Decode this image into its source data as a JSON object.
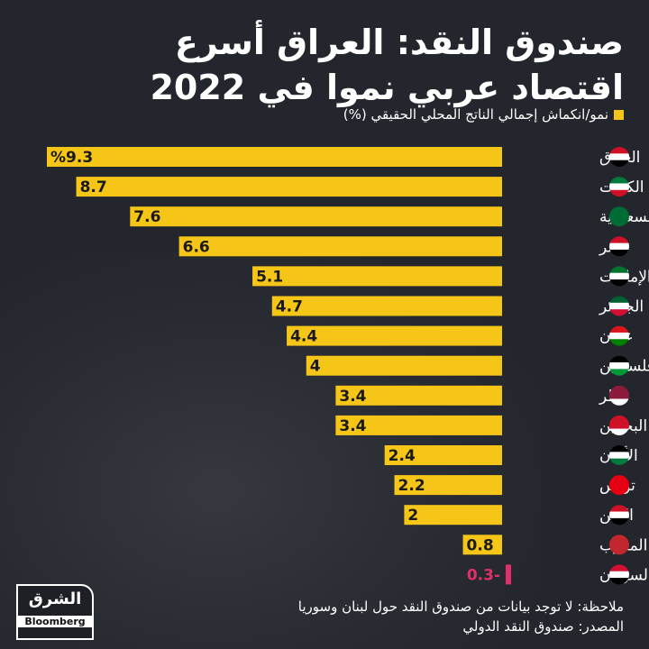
{
  "title_line1": "صندوق النقد: العراق أسرع",
  "title_line2": "اقتصاد عربي نموا في 2022",
  "legend_label": "نمو/انكماش إجمالي الناتج المحلي الحقيقي (%)",
  "note": "ملاحظة: لا توجد بيانات من صندوق النقد حول لبنان وسوريا",
  "source": "المصدر: صندوق النقد الدولي",
  "logo": {
    "arabic": "الشرق",
    "english": "Bloomberg"
  },
  "colors": {
    "positive": "#f5c518",
    "negative": "#e0306a",
    "background": "#23262d"
  },
  "chart_data": {
    "type": "bar",
    "orientation": "horizontal",
    "categories": [
      "العراق",
      "الكويت",
      "السعودية",
      "مصر",
      "الإمارات",
      "الجزائر",
      "عمان",
      "فلسطين",
      "قطر",
      "البحرين",
      "الأردن",
      "تونس",
      "اليمن",
      "المغرب",
      "السودان"
    ],
    "values": [
      9.3,
      8.7,
      7.6,
      6.6,
      5.1,
      4.7,
      4.4,
      4,
      3.4,
      3.4,
      2.4,
      2.2,
      2,
      0.8,
      -0.3
    ],
    "labels": [
      "%9.3",
      "8.7",
      "7.6",
      "6.6",
      "5.1",
      "4.7",
      "4.4",
      "4",
      "3.4",
      "3.4",
      "2.4",
      "2.2",
      "2",
      "0.8",
      "0.3-"
    ],
    "flags": [
      [
        "#ce1126",
        "#ffffff",
        "#000000"
      ],
      [
        "#007a3d",
        "#ffffff",
        "#ce1126"
      ],
      [
        "#006c35",
        "#006c35",
        "#006c35"
      ],
      [
        "#ce1126",
        "#ffffff",
        "#000000"
      ],
      [
        "#00732f",
        "#ffffff",
        "#000000"
      ],
      [
        "#006233",
        "#ffffff",
        "#d21034"
      ],
      [
        "#db161b",
        "#ffffff",
        "#008000"
      ],
      [
        "#000000",
        "#ffffff",
        "#009736"
      ],
      [
        "#8d1b3d",
        "#8d1b3d",
        "#ffffff"
      ],
      [
        "#ce1126",
        "#ce1126",
        "#ffffff"
      ],
      [
        "#000000",
        "#ffffff",
        "#007a3d"
      ],
      [
        "#e70013",
        "#e70013",
        "#e70013"
      ],
      [
        "#ce1126",
        "#ffffff",
        "#000000"
      ],
      [
        "#c1272d",
        "#c1272d",
        "#c1272d"
      ],
      [
        "#d21034",
        "#ffffff",
        "#000000"
      ]
    ],
    "xlim": [
      -0.3,
      9.3
    ],
    "grid": false
  }
}
